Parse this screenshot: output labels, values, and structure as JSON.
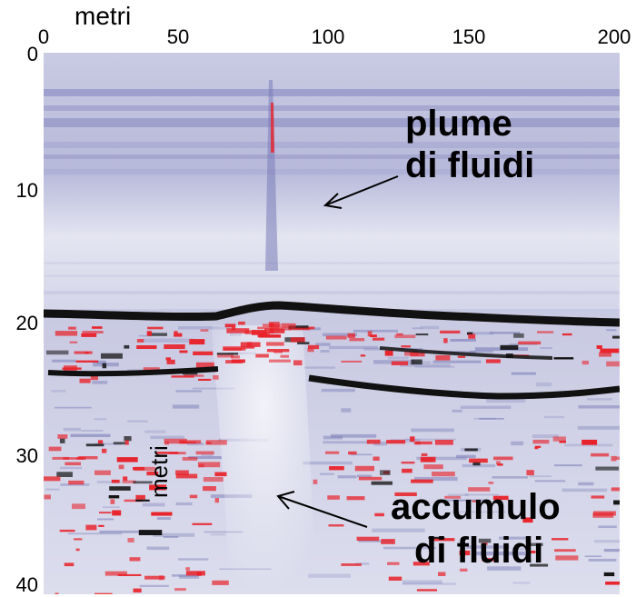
{
  "axes": {
    "x_title": "metri",
    "y_title": "metri",
    "x_ticks": [
      "0",
      "50",
      "100",
      "150",
      "200"
    ],
    "y_ticks": [
      "0",
      "10",
      "20",
      "30",
      "40"
    ]
  },
  "annotations": {
    "plume_line1": "plume",
    "plume_line2": "di fluidi",
    "accumulo_line1": "accumulo",
    "accumulo_line2": "di fluidi"
  },
  "colors": {
    "background": "#ffffff",
    "water_column": "#b8bada",
    "reflector": "#111111",
    "high_amplitude": "#e8222a",
    "sediment": "#9ea0c8"
  }
}
